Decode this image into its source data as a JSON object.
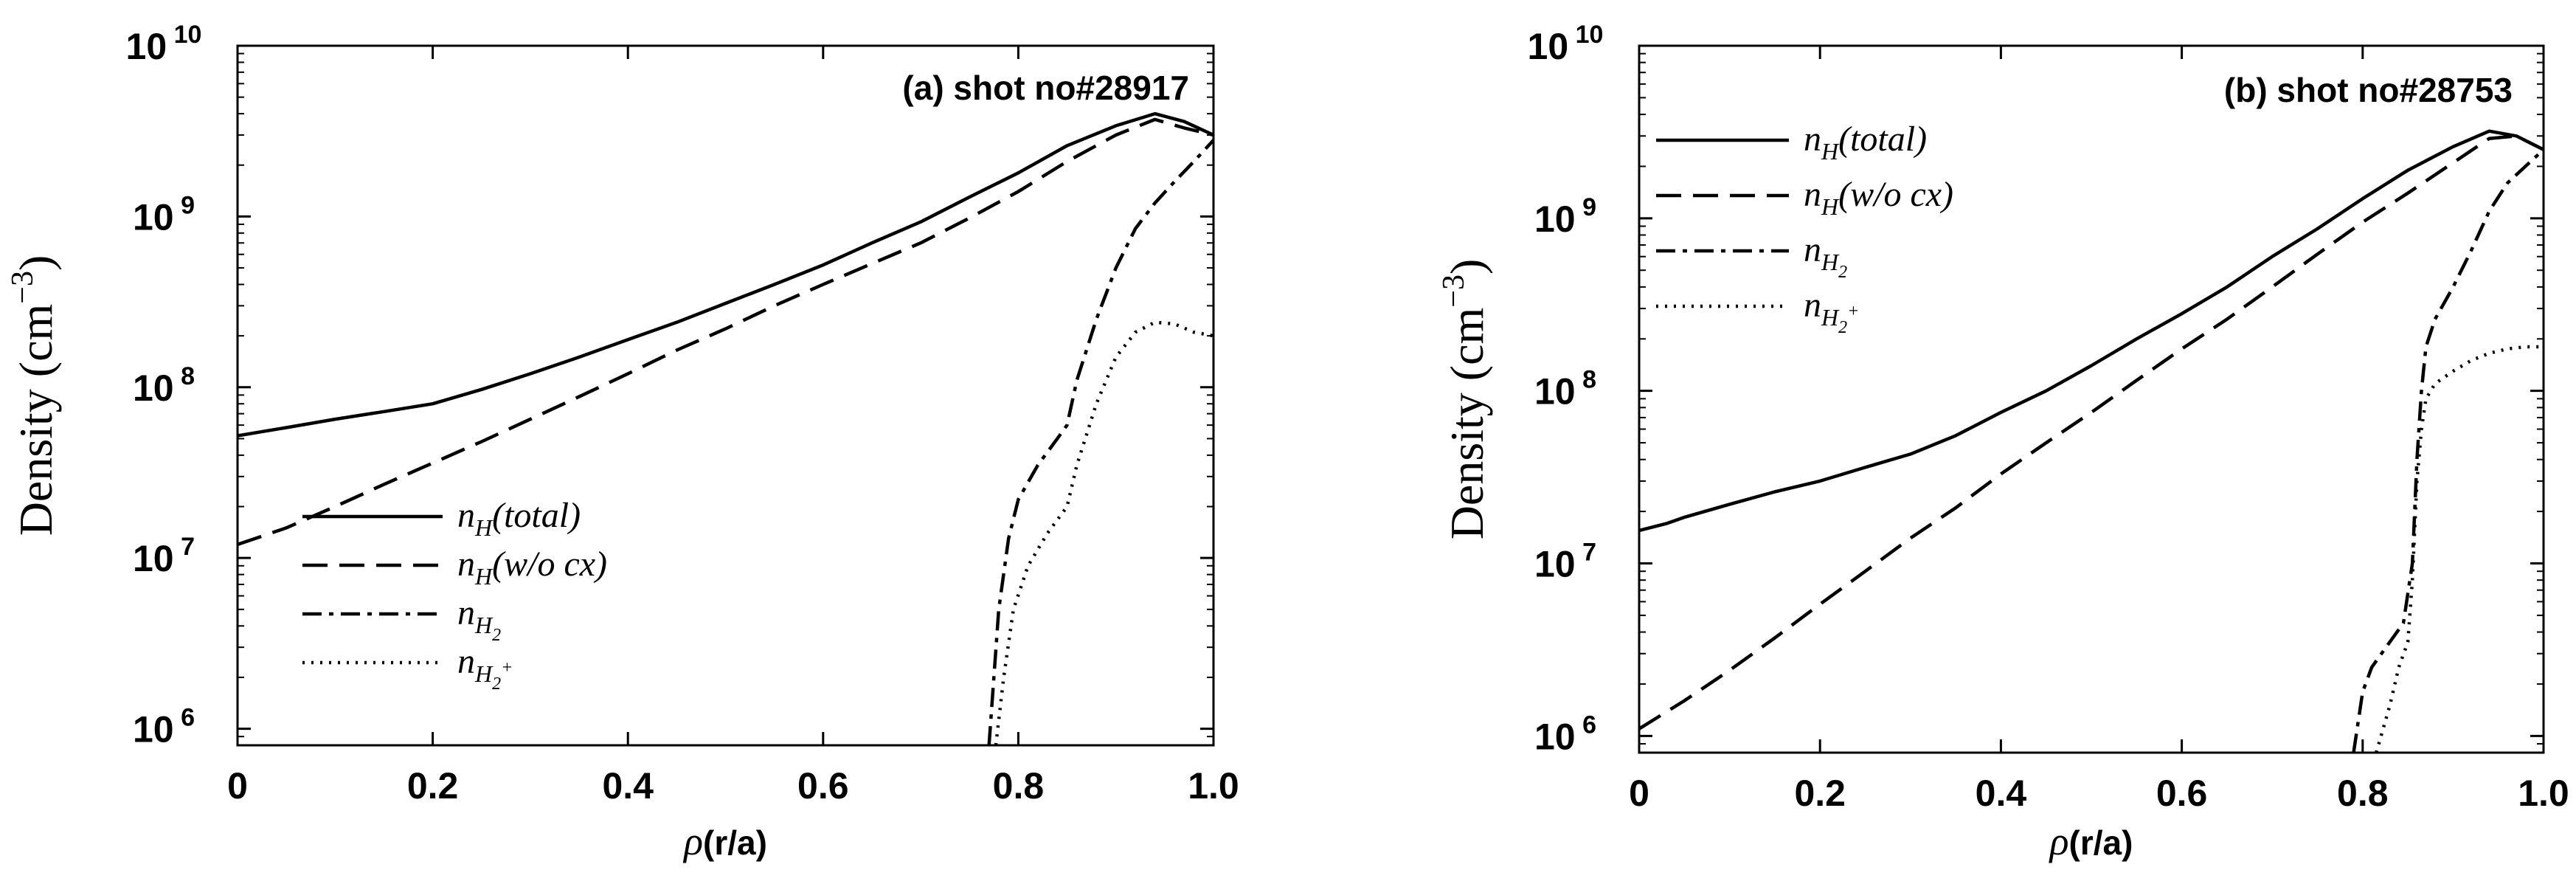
{
  "chart_data": [
    {
      "type": "line",
      "title": "(a) shot no#28917",
      "xlabel": {
        "symbol": "ρ",
        "text": "(r/a)"
      },
      "ylabel": {
        "text": "Density (cm",
        "exponent": "−3",
        "close": ")"
      },
      "xlim": [
        0,
        1.0
      ],
      "ylim": [
        800000,
        10000000000
      ],
      "yscale": "log",
      "x_ticks": [
        "0",
        "0.2",
        "0.4",
        "0.6",
        "0.8",
        "1.0"
      ],
      "y_ticks": [
        {
          "base": "10",
          "exp": "6",
          "value": 1000000
        },
        {
          "base": "10",
          "exp": "7",
          "value": 10000000
        },
        {
          "base": "10",
          "exp": "8",
          "value": 100000000
        },
        {
          "base": "10",
          "exp": "9",
          "value": 1000000000
        },
        {
          "base": "10",
          "exp": "10",
          "value": 10000000000
        }
      ],
      "grid": false,
      "legend_position": "lower-left",
      "series": [
        {
          "name": "n_H(total)",
          "legend_main": "n",
          "legend_sub": "H",
          "legend_tail": "(total)",
          "style": "solid",
          "x": [
            0,
            0.05,
            0.1,
            0.15,
            0.2,
            0.25,
            0.3,
            0.35,
            0.4,
            0.45,
            0.5,
            0.55,
            0.6,
            0.65,
            0.7,
            0.75,
            0.8,
            0.85,
            0.9,
            0.94,
            0.97,
            1.0
          ],
          "y": [
            52000000,
            58000000,
            65000000,
            72000000,
            80000000,
            97000000,
            120000000,
            150000000,
            190000000,
            240000000,
            310000000,
            400000000,
            520000000,
            700000000,
            930000000,
            1300000000,
            1800000000,
            2600000000,
            3400000000,
            4000000000,
            3600000000,
            3000000000
          ]
        },
        {
          "name": "n_H(w/o cx)",
          "legend_main": "n",
          "legend_sub": "H",
          "legend_tail": "(w/o cx)",
          "style": "dashed",
          "x": [
            0,
            0.05,
            0.1,
            0.15,
            0.2,
            0.25,
            0.3,
            0.35,
            0.4,
            0.45,
            0.5,
            0.55,
            0.6,
            0.65,
            0.7,
            0.75,
            0.8,
            0.85,
            0.9,
            0.94,
            0.97,
            1.0
          ],
          "y": [
            12000000,
            15000000,
            20000000,
            27000000,
            36000000,
            48000000,
            65000000,
            88000000,
            120000000,
            165000000,
            220000000,
            300000000,
            400000000,
            530000000,
            700000000,
            980000000,
            1400000000,
            2100000000,
            3000000000,
            3700000000,
            3300000000,
            3000000000
          ]
        },
        {
          "name": "n_H2",
          "legend_main": "n",
          "legend_sub": "H",
          "legend_subsub": "2",
          "style": "dashdot",
          "x": [
            0.77,
            0.78,
            0.79,
            0.8,
            0.82,
            0.84,
            0.85,
            0.86,
            0.88,
            0.9,
            0.92,
            0.94,
            0.96,
            0.98,
            1.0
          ],
          "y": [
            800000,
            5000000,
            13000000,
            22000000,
            35000000,
            50000000,
            60000000,
            110000000,
            250000000,
            500000000,
            850000000,
            1200000000,
            1600000000,
            2100000000,
            2800000000
          ]
        },
        {
          "name": "n_H2+",
          "legend_main": "n",
          "legend_sub": "H",
          "legend_subsub": "2",
          "legend_supsup": "+",
          "style": "dotted",
          "x": [
            0.777,
            0.785,
            0.795,
            0.81,
            0.83,
            0.85,
            0.86,
            0.88,
            0.9,
            0.92,
            0.94,
            0.96,
            0.98,
            1.0
          ],
          "y": [
            800000,
            2000000,
            5000000,
            9000000,
            14000000,
            20000000,
            35000000,
            80000000,
            150000000,
            210000000,
            240000000,
            235000000,
            210000000,
            200000000
          ]
        }
      ]
    },
    {
      "type": "line",
      "title": "(b) shot no#28753",
      "xlabel": {
        "symbol": "ρ",
        "text": "(r/a)"
      },
      "ylabel": {
        "text": "Density (cm",
        "exponent": "−3",
        "close": ")"
      },
      "xlim": [
        0,
        1.0
      ],
      "ylim": [
        800000,
        10000000000
      ],
      "yscale": "log",
      "x_ticks": [
        "0",
        "0.2",
        "0.4",
        "0.6",
        "0.8",
        "1.0"
      ],
      "y_ticks": [
        {
          "base": "10",
          "exp": "6",
          "value": 1000000
        },
        {
          "base": "10",
          "exp": "7",
          "value": 10000000
        },
        {
          "base": "10",
          "exp": "8",
          "value": 100000000
        },
        {
          "base": "10",
          "exp": "9",
          "value": 1000000000
        },
        {
          "base": "10",
          "exp": "10",
          "value": 10000000000
        }
      ],
      "grid": false,
      "legend_position": "upper-left",
      "series": [
        {
          "name": "n_H(total)",
          "legend_main": "n",
          "legend_sub": "H",
          "legend_tail": "(total)",
          "style": "solid",
          "x": [
            0,
            0.03,
            0.05,
            0.1,
            0.15,
            0.2,
            0.25,
            0.3,
            0.35,
            0.4,
            0.45,
            0.5,
            0.55,
            0.6,
            0.65,
            0.7,
            0.75,
            0.8,
            0.85,
            0.9,
            0.94,
            0.97,
            1.0
          ],
          "y": [
            15500000,
            17000000,
            18500000,
            22000000,
            26000000,
            30000000,
            36000000,
            43000000,
            55000000,
            75000000,
            100000000,
            140000000,
            200000000,
            280000000,
            400000000,
            600000000,
            870000000,
            1300000000,
            1900000000,
            2600000000,
            3200000000,
            3000000000,
            2500000000
          ]
        },
        {
          "name": "n_H(w/o cx)",
          "legend_main": "n",
          "legend_sub": "H",
          "legend_tail": "(w/o cx)",
          "style": "dashed",
          "x": [
            0,
            0.05,
            0.1,
            0.15,
            0.2,
            0.25,
            0.3,
            0.35,
            0.4,
            0.45,
            0.5,
            0.55,
            0.6,
            0.65,
            0.7,
            0.75,
            0.8,
            0.85,
            0.9,
            0.94,
            0.97,
            1.0
          ],
          "y": [
            1100000,
            1600000,
            2400000,
            3700000,
            5800000,
            9000000,
            14000000,
            21000000,
            33000000,
            50000000,
            75000000,
            115000000,
            175000000,
            260000000,
            400000000,
            620000000,
            950000000,
            1400000000,
            2100000000,
            2900000000,
            3000000000,
            2500000000
          ]
        },
        {
          "name": "n_H2",
          "legend_main": "n",
          "legend_sub": "H",
          "legend_subsub": "2",
          "style": "dashdot",
          "x": [
            0.79,
            0.8,
            0.81,
            0.83,
            0.845,
            0.855,
            0.86,
            0.865,
            0.87,
            0.88,
            0.9,
            0.92,
            0.94,
            0.96,
            0.98,
            1.0
          ],
          "y": [
            800000,
            1800000,
            2500000,
            3500000,
            4500000,
            10000000,
            40000000,
            100000000,
            180000000,
            260000000,
            400000000,
            650000000,
            1100000000,
            1600000000,
            2000000000,
            2500000000
          ]
        },
        {
          "name": "n_H2+",
          "legend_main": "n",
          "legend_sub": "H",
          "legend_subsub": "2",
          "legend_supsup": "+",
          "style": "dotted",
          "x": [
            0.815,
            0.83,
            0.84,
            0.85,
            0.855,
            0.86,
            0.865,
            0.87,
            0.88,
            0.9,
            0.92,
            0.94,
            0.96,
            0.98,
            1.0
          ],
          "y": [
            800000,
            1500000,
            2500000,
            3500000,
            8000000,
            30000000,
            60000000,
            90000000,
            110000000,
            130000000,
            150000000,
            165000000,
            175000000,
            180000000,
            180000000
          ]
        }
      ]
    }
  ]
}
